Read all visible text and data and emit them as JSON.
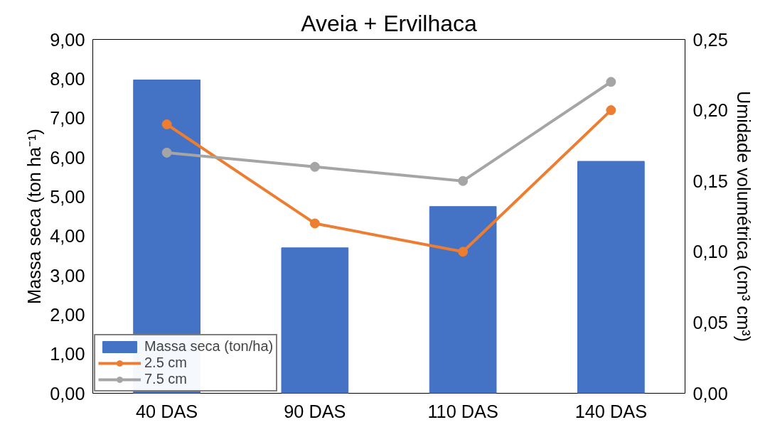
{
  "chart_data": {
    "type": "bar",
    "title": "Aveia + Ervilhaca",
    "categories": [
      "40 DAS",
      "90 DAS",
      "110 DAS",
      "140 DAS"
    ],
    "series": [
      {
        "name": "Massa seca (ton/ha)",
        "color": "#4472c4",
        "values": [
          7.97,
          3.7,
          4.75,
          5.9
        ]
      },
      {
        "name": "2.5 cm",
        "type": "line",
        "axis": "y2",
        "color": "#ed7d31",
        "values": [
          0.19,
          0.12,
          0.1,
          0.2
        ]
      },
      {
        "name": "7.5 cm",
        "type": "line",
        "axis": "y2",
        "color": "#a5a5a5",
        "values": [
          0.17,
          0.16,
          0.15,
          0.22
        ]
      }
    ],
    "ylabel": "Massa seca (ton ha⁻¹)",
    "y2label": "Umidade volumétrica (cm³ cm³)",
    "ylim": [
      0,
      9
    ],
    "yticks": [
      {
        "value": 0,
        "label": "0,00"
      },
      {
        "value": 1,
        "label": "1,00"
      },
      {
        "value": 2,
        "label": "2,00"
      },
      {
        "value": 3,
        "label": "3,00"
      },
      {
        "value": 4,
        "label": "4,00"
      },
      {
        "value": 5,
        "label": "5,00"
      },
      {
        "value": 6,
        "label": "6,00"
      },
      {
        "value": 7,
        "label": "7,00"
      },
      {
        "value": 8,
        "label": "8,00"
      },
      {
        "value": 9,
        "label": "9,00"
      }
    ],
    "y2lim": [
      0,
      0.25
    ],
    "y2ticks": [
      {
        "value": 0,
        "label": "0,00"
      },
      {
        "value": 0.05,
        "label": "0,05"
      },
      {
        "value": 0.1,
        "label": "0,10"
      },
      {
        "value": 0.15,
        "label": "0,15"
      },
      {
        "value": 0.2,
        "label": "0,20"
      },
      {
        "value": 0.25,
        "label": "0,25"
      }
    ],
    "marker": "circle",
    "line_style": "solid",
    "grid": false,
    "legend": "bottom left"
  }
}
